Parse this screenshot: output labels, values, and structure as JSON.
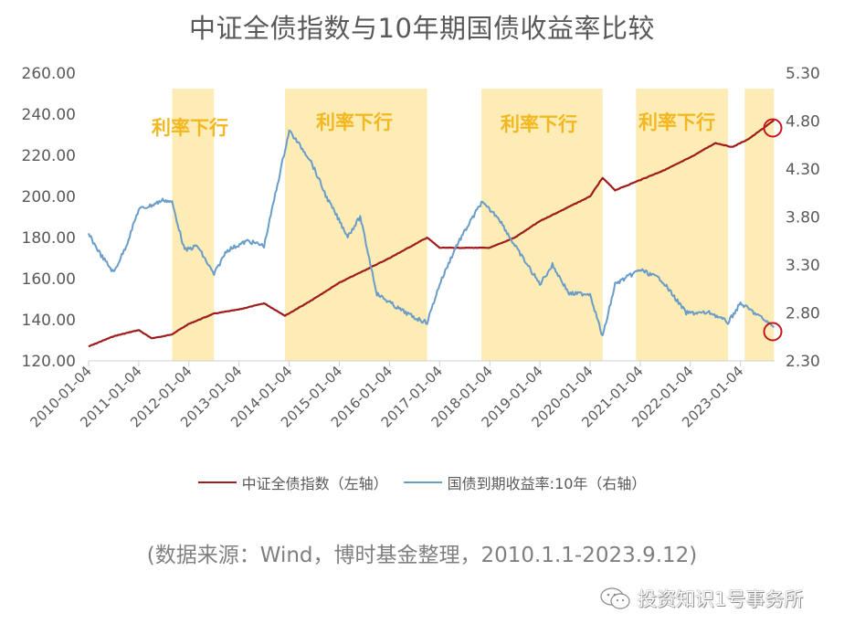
{
  "title": "中证全债指数与10年期国债收益率比较",
  "legend": [
    {
      "label": "中证全债指数（左轴）",
      "color": "#a01c1c"
    },
    {
      "label": "国债到期收益率:10年（右轴）",
      "color": "#6a9cc8"
    }
  ],
  "source_note": "(数据来源：Wind，博时基金整理，2010.1.1-2023.9.12)",
  "watermark": "投资知识1号事务所",
  "band_label": "利率下行",
  "chart_data": {
    "type": "line",
    "title": "中证全债指数与10年期国债收益率比较",
    "xlabel": "",
    "ylabel_left": "中证全债指数",
    "ylabel_right": "国债到期收益率:10年",
    "x_tick_labels": [
      "2010-01-04",
      "2011-01-04",
      "2012-01-04",
      "2013-01-04",
      "2014-01-04",
      "2015-01-04",
      "2016-01-04",
      "2017-01-04",
      "2018-01-04",
      "2019-01-04",
      "2020-01-04",
      "2021-01-04",
      "2022-01-04",
      "2023-01-04"
    ],
    "y_left_ticks": [
      "120.00",
      "140.00",
      "160.00",
      "180.00",
      "200.00",
      "220.00",
      "240.00",
      "260.00"
    ],
    "y_right_ticks": [
      "2.30",
      "2.80",
      "3.30",
      "3.80",
      "4.30",
      "4.80",
      "5.30"
    ],
    "ylim_left": [
      120,
      260
    ],
    "ylim_right": [
      2.3,
      5.3
    ],
    "grid": false,
    "legend_position": "bottom",
    "shaded_periods": [
      {
        "label": "利率下行",
        "start": "2011-09",
        "end": "2012-07"
      },
      {
        "label": "利率下行",
        "start": "2013-12",
        "end": "2016-10"
      },
      {
        "label": "利率下行",
        "start": "2017-11",
        "end": "2020-04"
      },
      {
        "label": "利率下行",
        "start": "2020-12",
        "end": "2022-10"
      },
      {
        "label": "",
        "start": "2023-02",
        "end": "2023-09"
      }
    ],
    "annotations": [
      "2023-09-12 endpoint circled on both series"
    ],
    "series": [
      {
        "name": "中证全债指数（左轴）",
        "axis": "left",
        "x": [
          "2010-01",
          "2010-07",
          "2011-01",
          "2011-04",
          "2011-07",
          "2011-09",
          "2012-01",
          "2012-07",
          "2013-01",
          "2013-07",
          "2013-12",
          "2014-06",
          "2015-01",
          "2015-06",
          "2016-01",
          "2016-10",
          "2017-01",
          "2017-07",
          "2018-01",
          "2018-07",
          "2019-01",
          "2019-07",
          "2020-01",
          "2020-04",
          "2020-07",
          "2021-01",
          "2021-07",
          "2022-01",
          "2022-07",
          "2022-11",
          "2023-03",
          "2023-09"
        ],
        "values": [
          127,
          132,
          135,
          131,
          132,
          133,
          138,
          143,
          145,
          148,
          142,
          149,
          158,
          163,
          170,
          180,
          175,
          175,
          175,
          180,
          188,
          194,
          200,
          209,
          203,
          208,
          213,
          219,
          226,
          224,
          228,
          237
        ]
      },
      {
        "name": "国债到期收益率:10年（右轴）",
        "axis": "right",
        "x": [
          "2010-01",
          "2010-04",
          "2010-07",
          "2010-10",
          "2011-01",
          "2011-04",
          "2011-07",
          "2011-09",
          "2011-12",
          "2012-03",
          "2012-07",
          "2012-10",
          "2013-03",
          "2013-07",
          "2013-11",
          "2014-01",
          "2014-06",
          "2014-10",
          "2015-03",
          "2015-06",
          "2015-10",
          "2016-03",
          "2016-07",
          "2016-10",
          "2017-01",
          "2017-05",
          "2017-11",
          "2018-03",
          "2018-07",
          "2019-01",
          "2019-04",
          "2019-08",
          "2020-01",
          "2020-04",
          "2020-07",
          "2021-01",
          "2021-06",
          "2021-12",
          "2022-06",
          "2022-10",
          "2023-01",
          "2023-06",
          "2023-09"
        ],
        "values": [
          3.62,
          3.4,
          3.22,
          3.5,
          3.88,
          3.92,
          3.98,
          3.95,
          3.45,
          3.5,
          3.2,
          3.45,
          3.55,
          3.5,
          4.3,
          4.7,
          4.4,
          4.0,
          3.6,
          3.8,
          3.0,
          2.85,
          2.75,
          2.7,
          3.1,
          3.5,
          3.95,
          3.8,
          3.5,
          3.1,
          3.3,
          3.0,
          3.0,
          2.55,
          3.1,
          3.25,
          3.15,
          2.8,
          2.8,
          2.7,
          2.9,
          2.75,
          2.65
        ]
      }
    ]
  }
}
